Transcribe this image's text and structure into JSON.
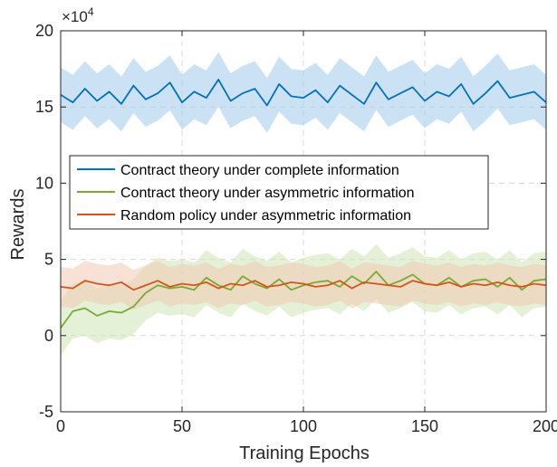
{
  "chart_data": {
    "type": "line",
    "title": "",
    "xlabel": "Training Epochs",
    "ylabel": "Rewards",
    "y_exponent_label": "×10",
    "y_exponent_power": "4",
    "xlim": [
      0,
      200
    ],
    "ylim": [
      -5,
      20
    ],
    "x_ticks": [
      "0",
      "50",
      "100",
      "150",
      "200"
    ],
    "y_ticks": [
      "-5",
      "0",
      "5",
      "10",
      "15",
      "20"
    ],
    "grid": true,
    "legend_position": "center-left",
    "x": [
      0,
      5,
      10,
      15,
      20,
      25,
      30,
      35,
      40,
      45,
      50,
      55,
      60,
      65,
      70,
      75,
      80,
      85,
      90,
      95,
      100,
      105,
      110,
      115,
      120,
      125,
      130,
      135,
      140,
      145,
      150,
      155,
      160,
      165,
      170,
      175,
      180,
      185,
      190,
      195,
      200
    ],
    "series": [
      {
        "name": "Contract theory under complete information",
        "color": "#0072BD",
        "band_color": "#9FCBEA",
        "band_halfwidth": 1.8,
        "values": [
          15.8,
          15.3,
          16.2,
          15.4,
          16.0,
          15.2,
          16.4,
          15.5,
          15.9,
          16.6,
          15.3,
          16.0,
          15.6,
          16.8,
          15.4,
          15.9,
          16.2,
          15.1,
          16.5,
          15.7,
          15.6,
          16.1,
          15.3,
          16.4,
          15.8,
          15.2,
          16.6,
          15.5,
          15.9,
          16.3,
          15.4,
          16.0,
          15.7,
          16.5,
          15.2,
          15.9,
          16.7,
          15.6,
          15.8,
          16.0,
          15.3
        ]
      },
      {
        "name": "Contract theory under asymmetric information",
        "color": "#77AC30",
        "band_color": "#CFE5B7",
        "band_halfwidth": 1.8,
        "values": [
          0.5,
          1.6,
          1.8,
          1.3,
          1.6,
          1.5,
          1.9,
          2.8,
          3.3,
          3.1,
          3.2,
          3.0,
          3.8,
          3.3,
          3.0,
          3.9,
          3.4,
          3.1,
          3.7,
          3.0,
          3.3,
          3.5,
          3.6,
          3.2,
          3.9,
          3.4,
          4.2,
          3.3,
          3.6,
          4.0,
          3.4,
          3.3,
          3.8,
          3.2,
          3.6,
          3.7,
          3.2,
          3.8,
          3.0,
          3.6,
          3.7
        ]
      },
      {
        "name": "Random policy under asymmetric information",
        "color": "#D95319",
        "band_color": "#F2C9B3",
        "band_halfwidth": 1.3,
        "values": [
          3.2,
          3.1,
          3.6,
          3.4,
          3.3,
          3.5,
          3.0,
          3.3,
          3.6,
          3.2,
          3.4,
          3.3,
          3.5,
          3.1,
          3.4,
          3.3,
          3.6,
          3.2,
          3.3,
          3.5,
          3.4,
          3.2,
          3.3,
          3.6,
          3.1,
          3.5,
          3.4,
          3.3,
          3.2,
          3.6,
          3.4,
          3.3,
          3.5,
          3.2,
          3.4,
          3.3,
          3.5,
          3.3,
          3.2,
          3.4,
          3.3
        ]
      }
    ]
  }
}
